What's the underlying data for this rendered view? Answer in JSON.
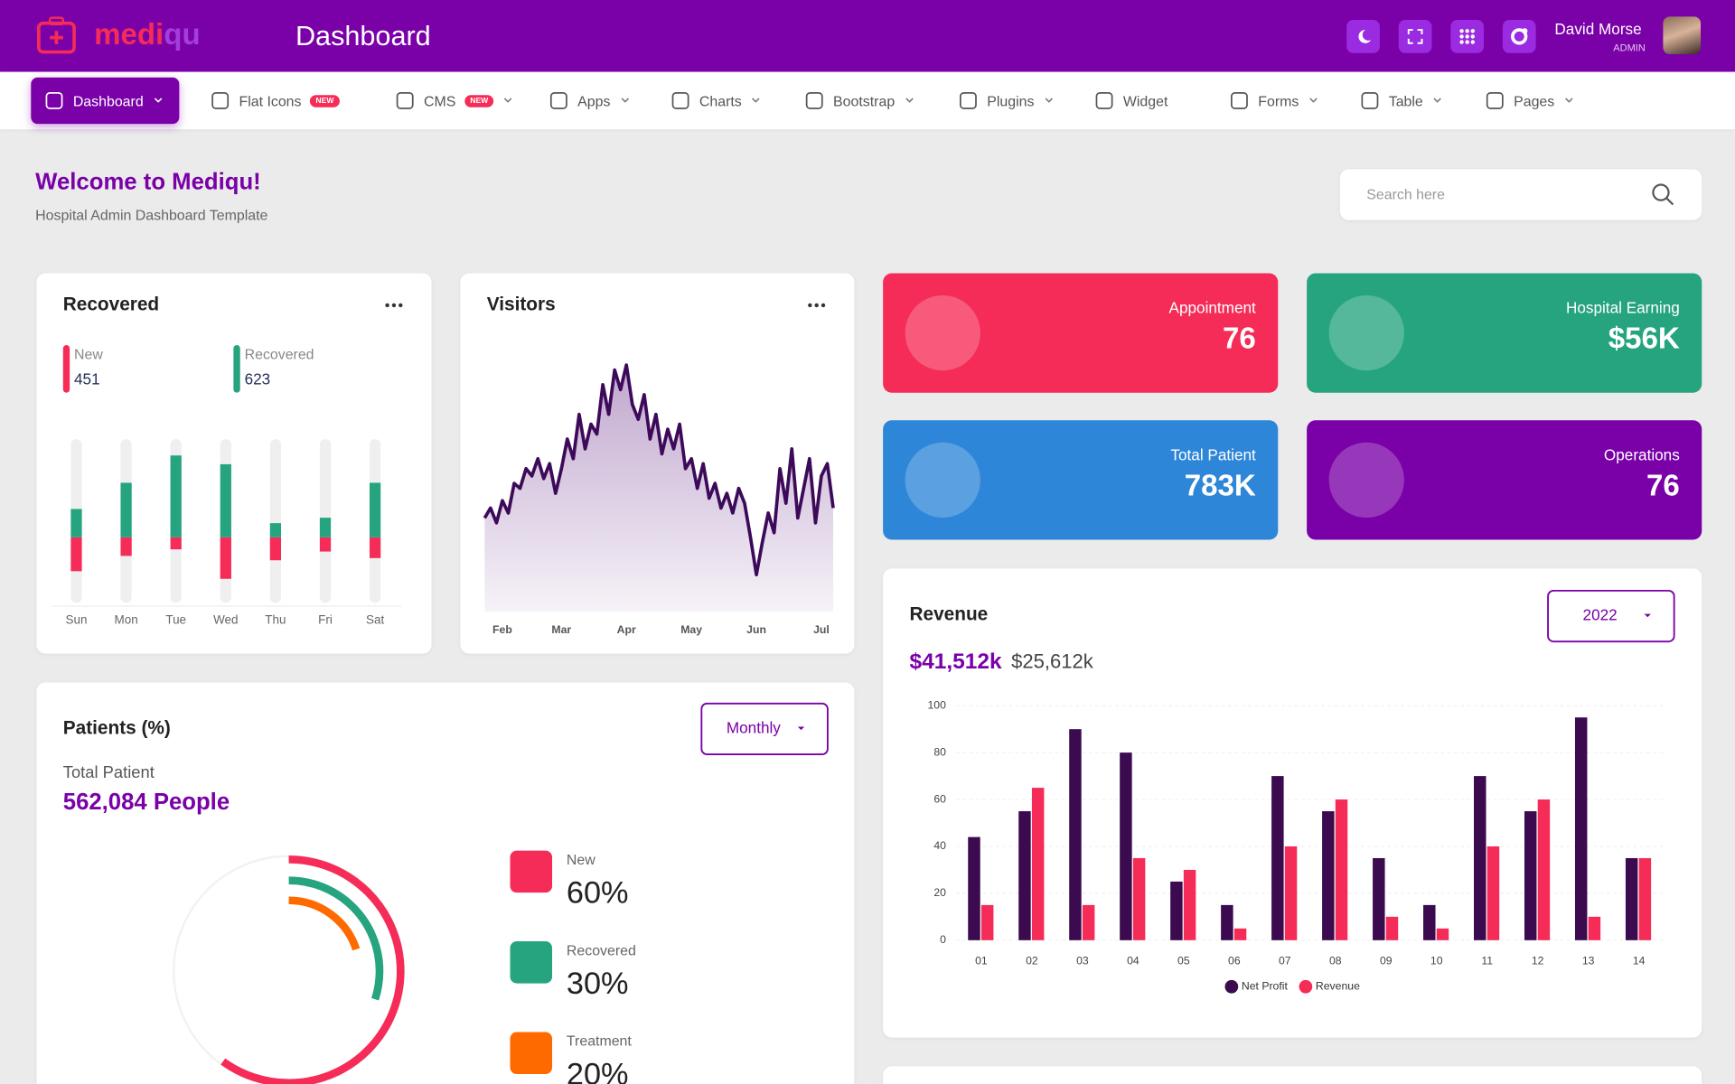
{
  "header": {
    "logo_a": "medi",
    "logo_b": "qu",
    "title": "Dashboard",
    "user": "David Morse",
    "role": "ADMIN"
  },
  "nav": [
    {
      "label": "Dashboard"
    },
    {
      "label": "Flat Icons",
      "badge": "NEW"
    },
    {
      "label": "CMS",
      "badge": "NEW"
    },
    {
      "label": "Apps"
    },
    {
      "label": "Charts"
    },
    {
      "label": "Bootstrap"
    },
    {
      "label": "Plugins"
    },
    {
      "label": "Widget"
    },
    {
      "label": "Forms"
    },
    {
      "label": "Table"
    },
    {
      "label": "Pages"
    }
  ],
  "welcome": {
    "title": "Welcome to Mediqu!",
    "subtitle": "Hospital Admin Dashboard Template"
  },
  "search": {
    "placeholder": "Search here"
  },
  "stats": [
    {
      "label": "Appointment",
      "value": "76",
      "color": "#f52c57"
    },
    {
      "label": "Hospital Earning",
      "value": "$56K",
      "color": "#26a47f"
    },
    {
      "label": "Total Patient",
      "value": "783K",
      "color": "#2e86d8"
    },
    {
      "label": "Operations",
      "value": "76",
      "color": "#7a00a8"
    }
  ],
  "chart_data": [
    {
      "type": "diverging_bar",
      "title": "Recovered",
      "categories": [
        "Sun",
        "Mon",
        "Tue",
        "Wed",
        "Thu",
        "Fri",
        "Sat"
      ],
      "series": [
        {
          "name": "New",
          "total": 451,
          "color": "#f52c57",
          "values": [
            31,
            17,
            11,
            38,
            21,
            13,
            19
          ]
        },
        {
          "name": "Recovered",
          "total": 623,
          "color": "#26a47f",
          "values": [
            26,
            50,
            75,
            67,
            13,
            18,
            50
          ]
        }
      ],
      "ylim": [
        -60,
        90
      ]
    },
    {
      "type": "area",
      "title": "Visitors",
      "categories": [
        null,
        null,
        null,
        "Feb",
        null,
        null,
        null,
        null,
        null,
        null,
        null,
        null,
        null,
        "Mar",
        null,
        null,
        null,
        null,
        null,
        null,
        null,
        null,
        null,
        null,
        "Apr",
        null,
        null,
        null,
        null,
        null,
        null,
        null,
        null,
        null,
        null,
        "May",
        null,
        null,
        null,
        null,
        null,
        null,
        null,
        null,
        null,
        null,
        "Jun",
        null,
        null,
        null,
        null,
        null,
        null,
        null,
        null,
        null,
        null,
        "Jul",
        null,
        null
      ],
      "values": [
        38,
        42,
        36,
        45,
        40,
        52,
        50,
        58,
        55,
        62,
        54,
        60,
        48,
        58,
        70,
        62,
        80,
        66,
        76,
        72,
        92,
        80,
        98,
        90,
        100,
        84,
        78,
        88,
        70,
        80,
        64,
        74,
        66,
        76,
        58,
        62,
        50,
        60,
        46,
        52,
        42,
        48,
        40,
        50,
        44,
        30,
        15,
        28,
        40,
        32,
        58,
        44,
        66,
        38,
        50,
        62,
        36,
        55,
        60,
        42
      ],
      "color": "#3d0a5a",
      "ylim": [
        0,
        100
      ]
    },
    {
      "type": "bar",
      "title": "Revenue",
      "summary": [
        "$41,512k",
        "$25,612k"
      ],
      "dropdown": "2022",
      "categories": [
        "01",
        "02",
        "03",
        "04",
        "05",
        "06",
        "07",
        "08",
        "09",
        "10",
        "11",
        "12",
        "13",
        "14"
      ],
      "series": [
        {
          "name": "Net Profit",
          "color": "#3b0a4f",
          "values": [
            44,
            55,
            90,
            80,
            25,
            15,
            70,
            55,
            35,
            15,
            70,
            55,
            95,
            35
          ]
        },
        {
          "name": "Revenue",
          "color": "#f52c57",
          "values": [
            15,
            65,
            15,
            35,
            30,
            5,
            40,
            60,
            10,
            5,
            40,
            60,
            10,
            35
          ]
        }
      ],
      "ylim": [
        0,
        100
      ],
      "yticks": [
        0,
        20,
        40,
        60,
        80,
        100
      ],
      "grid": true,
      "legend": "bottom"
    },
    {
      "type": "radial",
      "title": "Patients (%)",
      "dropdown": "Monthly",
      "total_label": "Total Patient",
      "total": "562,084 People",
      "categories": [
        "New",
        "Recovered",
        "Treatment"
      ],
      "values": [
        60,
        30,
        20
      ],
      "value_labels": [
        "60%",
        "30%",
        "20%"
      ],
      "colors": [
        "#f52c57",
        "#26a47f",
        "#ff6a00"
      ]
    }
  ]
}
